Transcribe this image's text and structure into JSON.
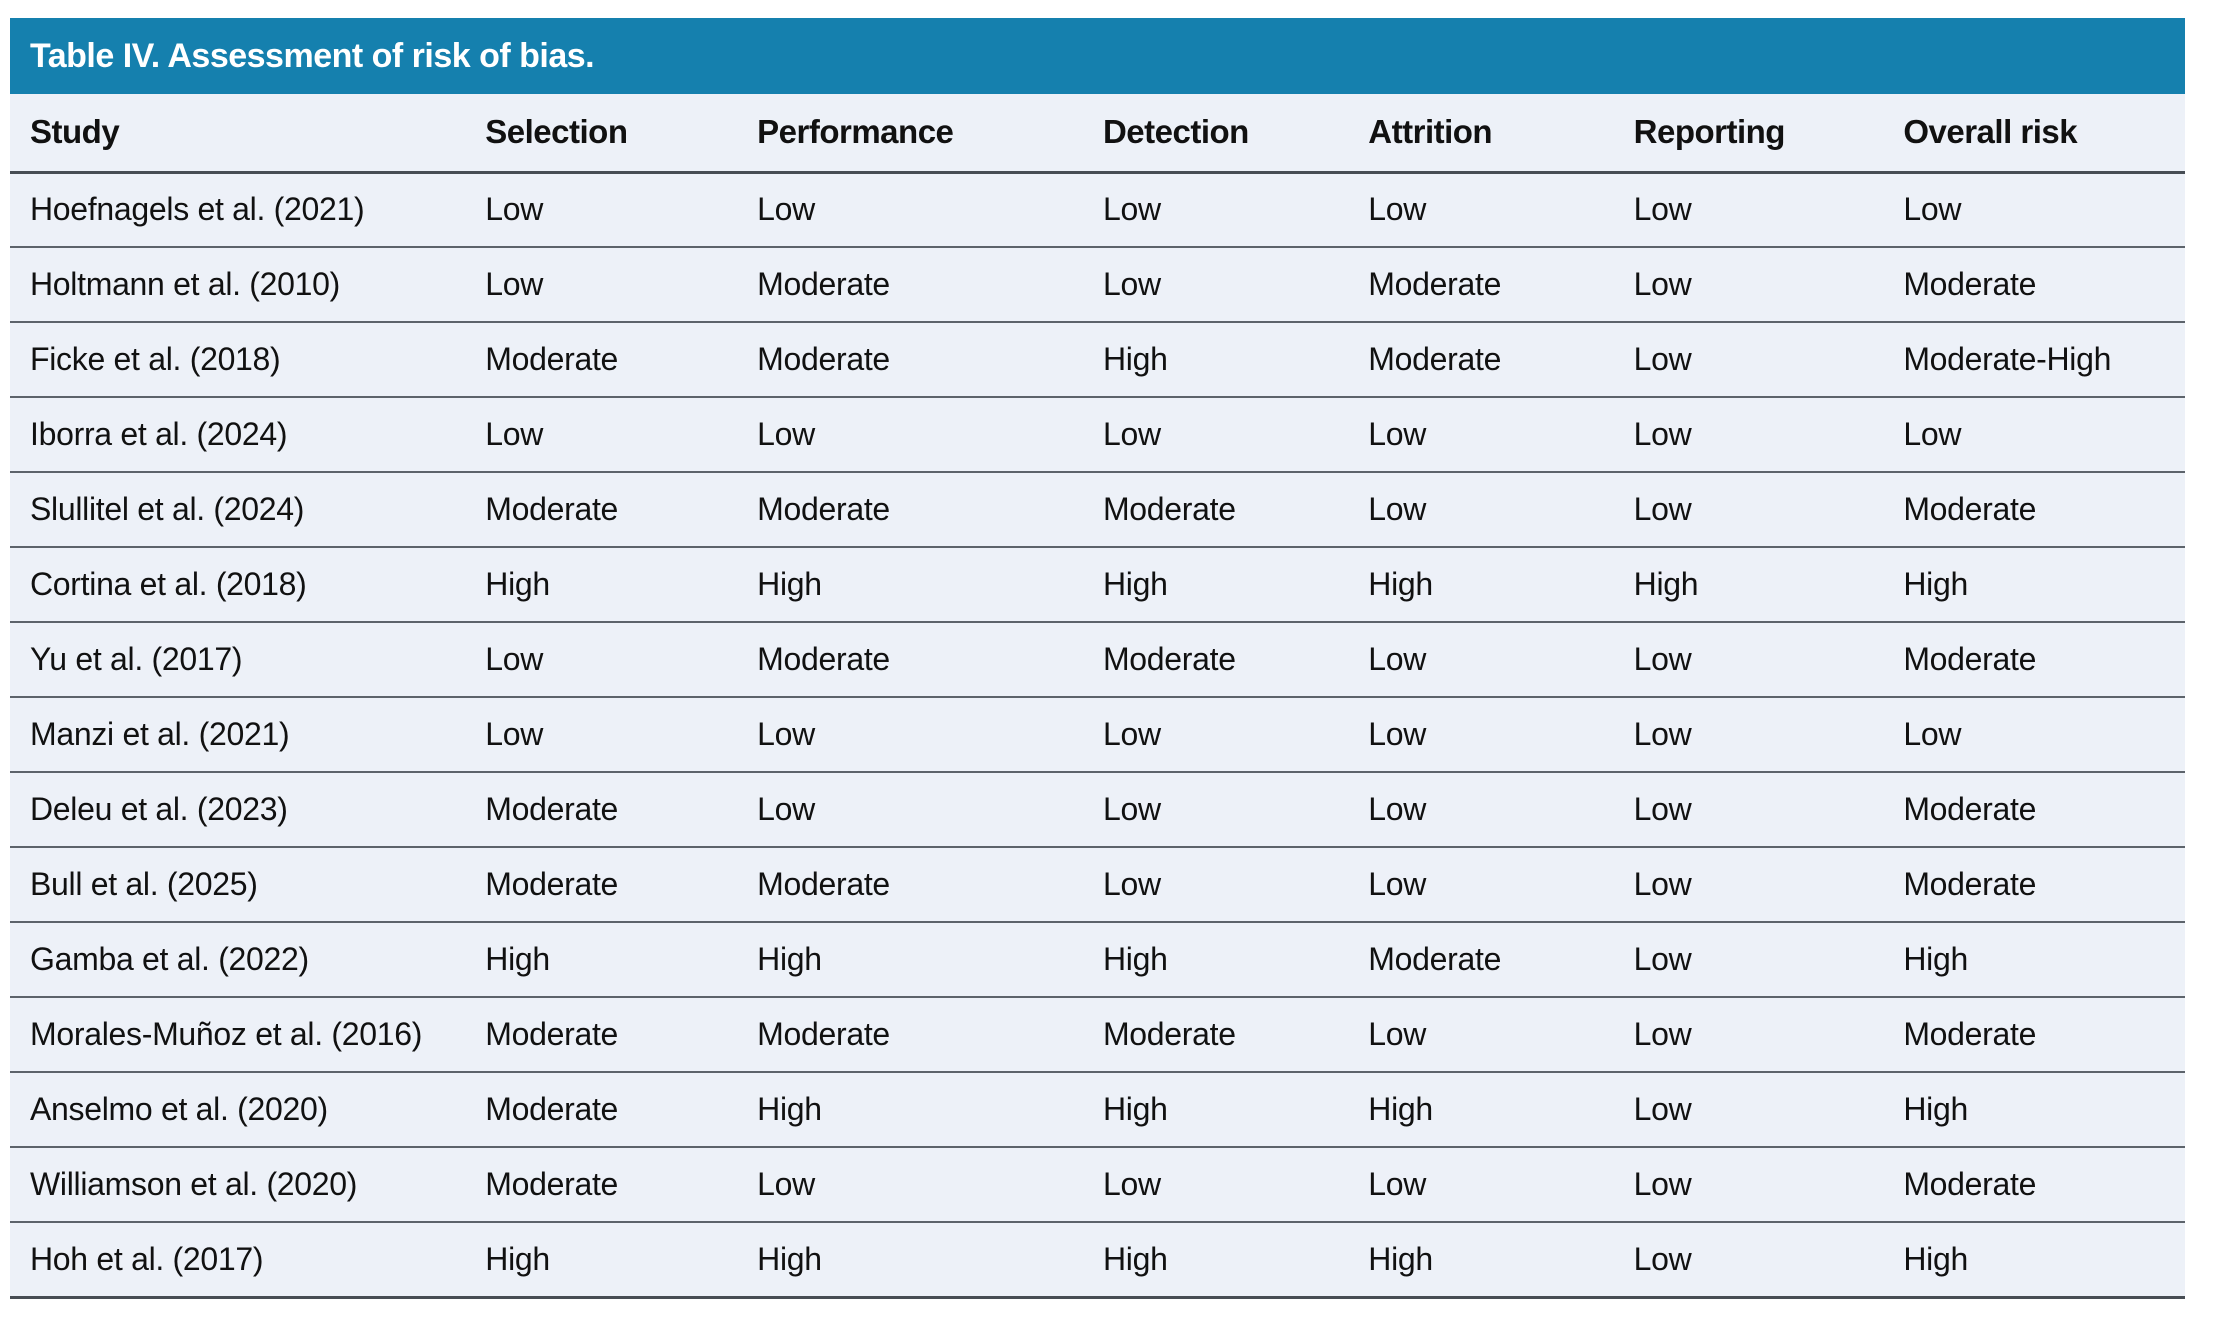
{
  "title": "Table IV. Assessment of risk of bias.",
  "columns": [
    "Study",
    "Selection",
    "Performance",
    "Detection",
    "Attrition",
    "Reporting",
    "Overall risk"
  ],
  "rows": [
    {
      "study": "Hoefnagels et al. (2021)",
      "ratings": [
        "Low",
        "Low",
        "Low",
        "Low",
        "Low",
        "Low"
      ]
    },
    {
      "study": "Holtmann et al. (2010)",
      "ratings": [
        "Low",
        "Moderate",
        "Low",
        "Moderate",
        "Low",
        "Moderate"
      ]
    },
    {
      "study": "Ficke et al. (2018)",
      "ratings": [
        "Moderate",
        "Moderate",
        "High",
        "Moderate",
        "Low",
        "Moderate-High"
      ]
    },
    {
      "study": "Iborra et al. (2024)",
      "ratings": [
        "Low",
        "Low",
        "Low",
        "Low",
        "Low",
        "Low"
      ]
    },
    {
      "study": "Slullitel et al. (2024)",
      "ratings": [
        "Moderate",
        "Moderate",
        "Moderate",
        "Low",
        "Low",
        "Moderate"
      ]
    },
    {
      "study": "Cortina et al. (2018)",
      "ratings": [
        "High",
        "High",
        "High",
        "High",
        "High",
        "High"
      ]
    },
    {
      "study": "Yu et al. (2017)",
      "ratings": [
        "Low",
        "Moderate",
        "Moderate",
        "Low",
        "Low",
        "Moderate"
      ]
    },
    {
      "study": "Manzi et al. (2021)",
      "ratings": [
        "Low",
        "Low",
        "Low",
        "Low",
        "Low",
        "Low"
      ]
    },
    {
      "study": "Deleu et al. (2023)",
      "ratings": [
        "Moderate",
        "Low",
        "Low",
        "Low",
        "Low",
        "Moderate"
      ]
    },
    {
      "study": "Bull et al. (2025)",
      "ratings": [
        "Moderate",
        "Moderate",
        "Low",
        "Low",
        "Low",
        "Moderate"
      ]
    },
    {
      "study": "Gamba et al. (2022)",
      "ratings": [
        "High",
        "High",
        "High",
        "Moderate",
        "Low",
        "High"
      ]
    },
    {
      "study": "Morales-Muñoz et al. (2016)",
      "ratings": [
        "Moderate",
        "Moderate",
        "Moderate",
        "Low",
        "Low",
        "Moderate"
      ]
    },
    {
      "study": "Anselmo et al. (2020)",
      "ratings": [
        "Moderate",
        "High",
        "High",
        "High",
        "Low",
        "High"
      ]
    },
    {
      "study": "Williamson et al. (2020)",
      "ratings": [
        "Moderate",
        "Low",
        "Low",
        "Low",
        "Low",
        "Moderate"
      ]
    },
    {
      "study": "Hoh et al. (2017)",
      "ratings": [
        "High",
        "High",
        "High",
        "High",
        "Low",
        "High"
      ]
    }
  ],
  "colors": {
    "title_bar_bg": "#1580ae",
    "title_text": "#ffffff",
    "body_bg": "#edf1f8",
    "cell_text": "#111111",
    "rule_strong": "#474d54",
    "rule_row": "#5d636b"
  }
}
